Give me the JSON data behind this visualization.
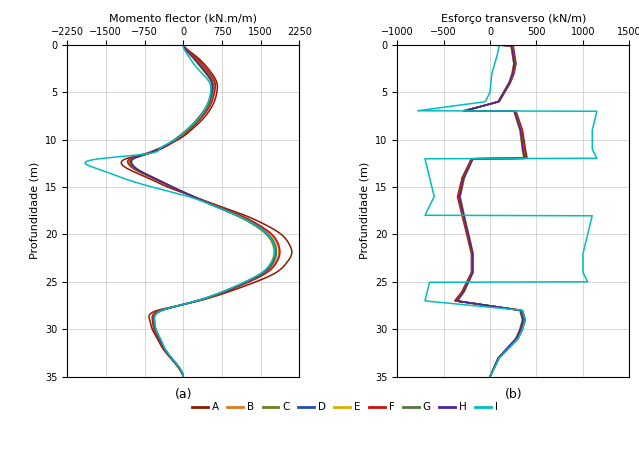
{
  "left_title": "Momento flector (kN.m/m)",
  "right_title": "Esforço transverso (kN/m)",
  "ylabel": "Profundidade (m)",
  "left_xlim": [
    -2250,
    2250
  ],
  "right_xlim": [
    -1000,
    1500
  ],
  "ylim": [
    35,
    0
  ],
  "left_xticks": [
    -2250,
    -1500,
    -750,
    0,
    750,
    1500,
    2250
  ],
  "right_xticks": [
    -1000,
    -500,
    0,
    500,
    1000,
    1500
  ],
  "yticks": [
    0,
    5,
    10,
    15,
    20,
    25,
    30,
    35
  ],
  "xlabel_a": "(a)",
  "xlabel_b": "(b)",
  "series": [
    "A",
    "B",
    "C",
    "D",
    "E",
    "F",
    "G",
    "H",
    "I"
  ],
  "colors": [
    "#8B1A00",
    "#E07820",
    "#787820",
    "#2050B0",
    "#D4B000",
    "#CC1010",
    "#507840",
    "#5020A0",
    "#00BEBE"
  ],
  "moment_data": {
    "A": {
      "z": [
        0,
        0.5,
        1,
        2,
        3,
        4,
        5,
        6,
        7,
        8,
        9,
        10,
        11,
        11.5,
        12,
        12.5,
        13,
        14,
        15,
        16,
        17,
        18,
        19,
        20,
        21,
        22,
        23,
        24,
        25,
        26,
        27,
        27.5,
        28,
        29,
        30,
        31,
        32,
        33,
        34,
        35
      ],
      "m": [
        0,
        80,
        200,
        400,
        550,
        650,
        650,
        600,
        500,
        350,
        150,
        -100,
        -500,
        -750,
        -1100,
        -1200,
        -1100,
        -700,
        -300,
        200,
        700,
        1200,
        1600,
        1900,
        2050,
        2100,
        2000,
        1800,
        1400,
        900,
        300,
        -100,
        -500,
        -650,
        -600,
        -500,
        -400,
        -250,
        -100,
        0
      ]
    },
    "B": {
      "z": [
        0,
        0.5,
        1,
        2,
        3,
        4,
        5,
        6,
        7,
        8,
        9,
        10,
        11,
        11.5,
        12,
        12.5,
        13,
        14,
        15,
        16,
        17,
        18,
        19,
        20,
        21,
        22,
        23,
        24,
        25,
        26,
        27,
        27.5,
        28,
        29,
        30,
        31,
        32,
        33,
        34,
        35
      ],
      "m": [
        0,
        60,
        160,
        340,
        490,
        600,
        590,
        540,
        440,
        290,
        100,
        -130,
        -450,
        -700,
        -1000,
        -1050,
        -960,
        -600,
        -220,
        200,
        650,
        1100,
        1450,
        1700,
        1820,
        1850,
        1780,
        1600,
        1250,
        820,
        270,
        -100,
        -440,
        -590,
        -560,
        -470,
        -380,
        -240,
        -90,
        0
      ]
    },
    "C": {
      "z": [
        0,
        0.5,
        1,
        2,
        3,
        4,
        5,
        6,
        7,
        8,
        9,
        10,
        11,
        11.5,
        12,
        12.5,
        13,
        14,
        15,
        16,
        17,
        18,
        19,
        20,
        21,
        22,
        23,
        24,
        25,
        26,
        27,
        27.5,
        28,
        29,
        30,
        31,
        32,
        33,
        34,
        35
      ],
      "m": [
        0,
        50,
        140,
        310,
        460,
        570,
        565,
        510,
        410,
        265,
        80,
        -150,
        -460,
        -700,
        -980,
        -1020,
        -940,
        -590,
        -210,
        195,
        620,
        1060,
        1400,
        1640,
        1760,
        1790,
        1730,
        1560,
        1220,
        800,
        260,
        -90,
        -420,
        -570,
        -540,
        -455,
        -370,
        -235,
        -85,
        0
      ]
    },
    "D": {
      "z": [
        0,
        0.5,
        1,
        2,
        3,
        4,
        5,
        6,
        7,
        8,
        9,
        10,
        11,
        11.5,
        12,
        12.5,
        13,
        14,
        15,
        16,
        17,
        18,
        19,
        20,
        21,
        22,
        23,
        24,
        25,
        26,
        27,
        27.5,
        28,
        29,
        30,
        31,
        32,
        33,
        34,
        35
      ],
      "m": [
        0,
        45,
        130,
        290,
        440,
        550,
        545,
        495,
        395,
        250,
        65,
        -165,
        -470,
        -710,
        -960,
        -1000,
        -920,
        -580,
        -205,
        192,
        605,
        1040,
        1380,
        1620,
        1740,
        1770,
        1710,
        1545,
        1210,
        790,
        255,
        -92,
        -412,
        -562,
        -534,
        -450,
        -366,
        -232,
        -82,
        0
      ]
    },
    "E": {
      "z": [
        0,
        0.5,
        1,
        2,
        3,
        4,
        5,
        6,
        7,
        8,
        9,
        10,
        11,
        11.5,
        12,
        12.5,
        13,
        14,
        15,
        16,
        17,
        18,
        19,
        20,
        21,
        22,
        23,
        24,
        25,
        26,
        27,
        27.5,
        28,
        29,
        30,
        31,
        32,
        33,
        34,
        35
      ],
      "m": [
        0,
        40,
        120,
        275,
        425,
        540,
        535,
        485,
        385,
        242,
        60,
        -172,
        -475,
        -715,
        -950,
        -990,
        -910,
        -572,
        -202,
        190,
        595,
        1025,
        1365,
        1605,
        1725,
        1755,
        1695,
        1530,
        1198,
        782,
        251,
        -93,
        -408,
        -556,
        -528,
        -445,
        -362,
        -229,
        -79,
        0
      ]
    },
    "F": {
      "z": [
        0,
        0.5,
        1,
        2,
        3,
        4,
        5,
        6,
        7,
        8,
        9,
        10,
        11,
        11.5,
        12,
        12.5,
        13,
        14,
        15,
        16,
        17,
        18,
        19,
        20,
        21,
        22,
        23,
        24,
        25,
        26,
        27,
        27.5,
        28,
        29,
        30,
        31,
        32,
        33,
        34,
        35
      ],
      "m": [
        0,
        65,
        170,
        360,
        510,
        615,
        605,
        555,
        452,
        300,
        110,
        -120,
        -440,
        -690,
        -1020,
        -1070,
        -980,
        -616,
        -225,
        202,
        658,
        1115,
        1465,
        1720,
        1840,
        1870,
        1800,
        1625,
        1275,
        835,
        272,
        -98,
        -448,
        -598,
        -566,
        -476,
        -385,
        -244,
        -92,
        0
      ]
    },
    "G": {
      "z": [
        0,
        0.5,
        1,
        2,
        3,
        4,
        5,
        6,
        7,
        8,
        9,
        10,
        11,
        11.5,
        12,
        12.5,
        13,
        14,
        15,
        16,
        17,
        18,
        19,
        20,
        21,
        22,
        23,
        24,
        25,
        26,
        27,
        27.5,
        28,
        29,
        30,
        31,
        32,
        33,
        34,
        35
      ],
      "m": [
        0,
        52,
        145,
        318,
        468,
        576,
        570,
        516,
        416,
        270,
        83,
        -154,
        -463,
        -703,
        -988,
        -1030,
        -948,
        -594,
        -212,
        193,
        627,
        1070,
        1410,
        1652,
        1775,
        1804,
        1742,
        1570,
        1228,
        804,
        263,
        -91,
        -424,
        -574,
        -545,
        -458,
        -372,
        -236,
        -84,
        0
      ]
    },
    "H": {
      "z": [
        0,
        0.5,
        1,
        2,
        3,
        4,
        5,
        6,
        7,
        8,
        9,
        10,
        11,
        11.5,
        12,
        12.5,
        13,
        14,
        15,
        16,
        17,
        18,
        19,
        20,
        21,
        22,
        23,
        24,
        25,
        26,
        27,
        27.5,
        28,
        29,
        30,
        31,
        32,
        33,
        34,
        35
      ],
      "m": [
        0,
        46,
        132,
        293,
        443,
        553,
        548,
        497,
        397,
        252,
        67,
        -163,
        -472,
        -712,
        -963,
        -1003,
        -923,
        -582,
        -206,
        191,
        607,
        1043,
        1382,
        1623,
        1743,
        1772,
        1712,
        1547,
        1213,
        792,
        257,
        -92,
        -414,
        -564,
        -536,
        -451,
        -367,
        -233,
        -82,
        0
      ]
    },
    "I": {
      "z": [
        0,
        0.5,
        1,
        2,
        3,
        4,
        5,
        6,
        7,
        8,
        9,
        10,
        11,
        11.5,
        12,
        12.5,
        13,
        14,
        15,
        16,
        17,
        18,
        19,
        20,
        21,
        22,
        23,
        24,
        25,
        26,
        27,
        27.5,
        28,
        29,
        30,
        31,
        32,
        33,
        34,
        35
      ],
      "m": [
        0,
        20,
        80,
        200,
        360,
        510,
        530,
        490,
        400,
        260,
        70,
        -160,
        -460,
        -700,
        -1600,
        -1900,
        -1700,
        -1200,
        -600,
        100,
        600,
        1050,
        1390,
        1630,
        1745,
        1770,
        1700,
        1530,
        1195,
        780,
        250,
        -93,
        -410,
        -558,
        -529,
        -443,
        -358,
        -226,
        -78,
        0
      ]
    }
  },
  "shear_data": {
    "A": {
      "z": [
        0,
        0.1,
        2,
        3,
        4,
        6,
        6.99,
        7.0,
        7.01,
        9,
        11,
        11.99,
        12.0,
        12.01,
        14,
        16,
        18,
        20,
        22,
        24,
        26,
        27,
        28,
        29,
        30,
        31,
        32,
        33,
        34,
        35
      ],
      "s": [
        0,
        250,
        280,
        260,
        220,
        100,
        -300,
        -300,
        280,
        350,
        380,
        400,
        400,
        -200,
        -300,
        -350,
        -300,
        -250,
        -200,
        -200,
        -300,
        -380,
        350,
        380,
        350,
        300,
        200,
        100,
        50,
        0
      ]
    },
    "B": {
      "z": [
        0,
        0.1,
        2,
        3,
        4,
        6,
        6.99,
        7.0,
        7.01,
        9,
        11,
        11.99,
        12.0,
        12.01,
        14,
        16,
        18,
        20,
        22,
        24,
        26,
        27,
        28,
        29,
        30,
        31,
        32,
        33,
        34,
        35
      ],
      "s": [
        0,
        240,
        270,
        252,
        215,
        94,
        -288,
        -288,
        272,
        340,
        365,
        385,
        385,
        -192,
        -290,
        -338,
        -292,
        -240,
        -193,
        -193,
        -290,
        -368,
        338,
        368,
        338,
        290,
        193,
        95,
        47,
        0
      ]
    },
    "C": {
      "z": [
        0,
        0.1,
        2,
        3,
        4,
        6,
        6.99,
        7.0,
        7.01,
        9,
        11,
        11.99,
        12.0,
        12.01,
        14,
        16,
        18,
        20,
        22,
        24,
        26,
        27,
        28,
        29,
        30,
        31,
        32,
        33,
        34,
        35
      ],
      "s": [
        0,
        232,
        262,
        245,
        209,
        90,
        -278,
        -278,
        264,
        330,
        355,
        374,
        374,
        -186,
        -281,
        -328,
        -284,
        -233,
        -187,
        -187,
        -281,
        -357,
        328,
        357,
        328,
        281,
        187,
        92,
        45,
        0
      ]
    },
    "D": {
      "z": [
        0,
        0.1,
        2,
        3,
        4,
        6,
        6.99,
        7.0,
        7.01,
        9,
        11,
        11.99,
        12.0,
        12.01,
        14,
        16,
        18,
        20,
        22,
        24,
        26,
        27,
        28,
        29,
        30,
        31,
        32,
        33,
        34,
        35
      ],
      "s": [
        0,
        228,
        258,
        241,
        206,
        88,
        -274,
        -274,
        260,
        325,
        350,
        369,
        369,
        -183,
        -278,
        -324,
        -280,
        -230,
        -184,
        -184,
        -278,
        -352,
        324,
        352,
        324,
        278,
        184,
        90,
        44,
        0
      ]
    },
    "E": {
      "z": [
        0,
        0.1,
        2,
        3,
        4,
        6,
        6.99,
        7.0,
        7.01,
        9,
        11,
        11.99,
        12.0,
        12.01,
        14,
        16,
        18,
        20,
        22,
        24,
        26,
        27,
        28,
        29,
        30,
        31,
        32,
        33,
        34,
        35
      ],
      "s": [
        0,
        225,
        255,
        238,
        203,
        86,
        -270,
        -270,
        256,
        320,
        345,
        364,
        364,
        -181,
        -274,
        -320,
        -276,
        -226,
        -181,
        -181,
        -274,
        -348,
        320,
        348,
        320,
        274,
        181,
        89,
        43,
        0
      ]
    },
    "F": {
      "z": [
        0,
        0.1,
        2,
        3,
        4,
        6,
        6.99,
        7.0,
        7.01,
        9,
        11,
        11.99,
        12.0,
        12.01,
        14,
        16,
        18,
        20,
        22,
        24,
        26,
        27,
        28,
        29,
        30,
        31,
        32,
        33,
        34,
        35
      ],
      "s": [
        0,
        243,
        272,
        255,
        217,
        93,
        -291,
        -291,
        274,
        342,
        368,
        388,
        388,
        -194,
        -293,
        -341,
        -295,
        -242,
        -194,
        -194,
        -293,
        -371,
        341,
        371,
        341,
        293,
        194,
        95,
        46,
        0
      ]
    },
    "G": {
      "z": [
        0,
        0.1,
        2,
        3,
        4,
        6,
        6.99,
        7.0,
        7.01,
        9,
        11,
        11.99,
        12.0,
        12.01,
        14,
        16,
        18,
        20,
        22,
        24,
        26,
        27,
        28,
        29,
        30,
        31,
        32,
        33,
        34,
        35
      ],
      "s": [
        0,
        234,
        264,
        247,
        211,
        91,
        -281,
        -281,
        266,
        333,
        358,
        377,
        377,
        -188,
        -283,
        -330,
        -286,
        -234,
        -188,
        -188,
        -283,
        -359,
        330,
        359,
        330,
        283,
        188,
        92,
        45,
        0
      ]
    },
    "H": {
      "z": [
        0,
        0.1,
        2,
        3,
        4,
        6,
        6.99,
        7.0,
        7.01,
        9,
        11,
        11.99,
        12.0,
        12.01,
        14,
        16,
        18,
        20,
        22,
        24,
        26,
        27,
        28,
        29,
        30,
        31,
        32,
        33,
        34,
        35
      ],
      "s": [
        0,
        229,
        259,
        242,
        207,
        89,
        -275,
        -275,
        261,
        326,
        351,
        370,
        370,
        -184,
        -279,
        -325,
        -281,
        -231,
        -184,
        -184,
        -279,
        -354,
        325,
        354,
        325,
        279,
        184,
        90,
        44,
        0
      ]
    },
    "I": {
      "z": [
        0,
        0.1,
        1,
        2,
        3,
        4,
        5,
        6,
        6.99,
        7.0,
        7.01,
        9,
        11,
        11.99,
        12.0,
        12.01,
        14,
        16,
        17.99,
        18.0,
        18.01,
        20,
        22,
        24,
        24.99,
        25.0,
        25.01,
        27,
        28,
        29,
        30,
        31,
        32,
        33,
        34,
        35
      ],
      "s": [
        0,
        100,
        80,
        50,
        20,
        10,
        0,
        -50,
        -800,
        -800,
        1150,
        1100,
        1100,
        1150,
        1150,
        -700,
        -650,
        -600,
        -700,
        -700,
        1100,
        1050,
        1000,
        1000,
        1050,
        1050,
        -650,
        -700,
        350,
        380,
        350,
        300,
        200,
        100,
        50,
        0
      ]
    }
  }
}
